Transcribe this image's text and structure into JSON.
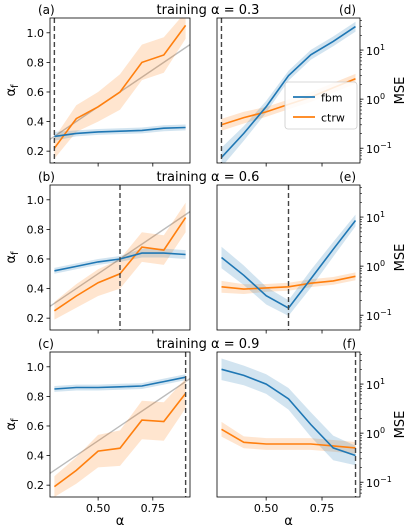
{
  "chart_data": {
    "type": "line",
    "row_titles": [
      "training α = 0.3",
      "training α = 0.6",
      "training α = 0.9"
    ],
    "x": [
      0.3,
      0.4,
      0.5,
      0.6,
      0.7,
      0.8,
      0.9
    ],
    "xlim": [
      0.28,
      0.92
    ],
    "xticks": [
      0.5,
      0.75
    ],
    "xtick_labels": [
      "0.50",
      "0.75"
    ],
    "xlabel": "α",
    "colors": {
      "fbm": "#1f77b4",
      "ctrw": "#ff7f0e",
      "identity": "#bbbbbb",
      "training": "#444444"
    },
    "left": {
      "ylabel": "αf",
      "ylim": [
        0.12,
        1.1
      ],
      "yticks": [
        0.2,
        0.4,
        0.6,
        0.8,
        1.0
      ],
      "ytick_labels": [
        "0.2",
        "0.4",
        "0.6",
        "0.8",
        "1.0"
      ],
      "panels": [
        {
          "label": "(a)",
          "training": 0.3,
          "fbm": [
            0.3,
            0.32,
            0.33,
            0.335,
            0.34,
            0.355,
            0.36
          ],
          "fbm_err": [
            0.03,
            0.02,
            0.02,
            0.02,
            0.02,
            0.02,
            0.02
          ],
          "ctrw": [
            0.22,
            0.42,
            0.5,
            0.6,
            0.8,
            0.85,
            1.05
          ],
          "ctrw_err": [
            0.07,
            0.09,
            0.1,
            0.12,
            0.12,
            0.12,
            0.09
          ]
        },
        {
          "label": "(b)",
          "training": 0.6,
          "fbm": [
            0.52,
            0.55,
            0.58,
            0.6,
            0.64,
            0.64,
            0.63
          ],
          "fbm_err": [
            0.02,
            0.02,
            0.02,
            0.02,
            0.03,
            0.03,
            0.03
          ],
          "ctrw": [
            0.25,
            0.35,
            0.44,
            0.5,
            0.68,
            0.66,
            0.88
          ],
          "ctrw_err": [
            0.06,
            0.08,
            0.09,
            0.1,
            0.1,
            0.1,
            0.1
          ]
        },
        {
          "label": "(c)",
          "training": 0.9,
          "fbm": [
            0.85,
            0.86,
            0.86,
            0.865,
            0.87,
            0.9,
            0.93
          ],
          "fbm_err": [
            0.02,
            0.02,
            0.02,
            0.02,
            0.02,
            0.02,
            0.02
          ],
          "ctrw": [
            0.19,
            0.3,
            0.43,
            0.45,
            0.64,
            0.63,
            0.82
          ],
          "ctrw_err": [
            0.07,
            0.09,
            0.11,
            0.12,
            0.13,
            0.13,
            0.1
          ]
        }
      ]
    },
    "right": {
      "ylabel": "MSE",
      "yscale": "log",
      "ylim": [
        0.05,
        45
      ],
      "yticks": [
        0.1,
        1,
        10
      ],
      "panels": [
        {
          "label": "(d)",
          "training": 0.3,
          "fbm": [
            0.065,
            0.2,
            0.7,
            3.0,
            8.0,
            15.0,
            30.0
          ],
          "fbm_err": [
            0.2,
            0.15,
            0.12,
            0.1,
            0.1,
            0.1,
            0.1
          ],
          "ctrw": [
            0.3,
            0.42,
            0.55,
            0.78,
            1.1,
            1.7,
            2.6
          ],
          "ctrw_err": [
            0.12,
            0.12,
            0.1,
            0.1,
            0.1,
            0.1,
            0.1
          ]
        },
        {
          "label": "(e)",
          "training": 0.6,
          "fbm": [
            1.5,
            0.65,
            0.25,
            0.14,
            0.55,
            2.2,
            8.5
          ],
          "fbm_err": [
            0.22,
            0.2,
            0.18,
            0.16,
            0.18,
            0.15,
            0.12
          ],
          "ctrw": [
            0.38,
            0.34,
            0.36,
            0.38,
            0.45,
            0.5,
            0.62
          ],
          "ctrw_err": [
            0.12,
            0.1,
            0.08,
            0.08,
            0.08,
            0.08,
            0.08
          ]
        },
        {
          "label": "(f)",
          "training": 0.9,
          "fbm": [
            20.0,
            15.0,
            10.0,
            5.0,
            1.5,
            0.5,
            0.35
          ],
          "fbm_err": [
            0.22,
            0.2,
            0.2,
            0.22,
            0.25,
            0.25,
            0.2
          ],
          "ctrw": [
            1.2,
            0.65,
            0.6,
            0.6,
            0.6,
            0.55,
            0.5
          ],
          "ctrw_err": [
            0.15,
            0.12,
            0.12,
            0.12,
            0.12,
            0.12,
            0.12
          ]
        }
      ]
    },
    "legend": {
      "placement": "inside panel (d), center-right",
      "entries": [
        "fbm",
        "ctrw"
      ]
    }
  }
}
